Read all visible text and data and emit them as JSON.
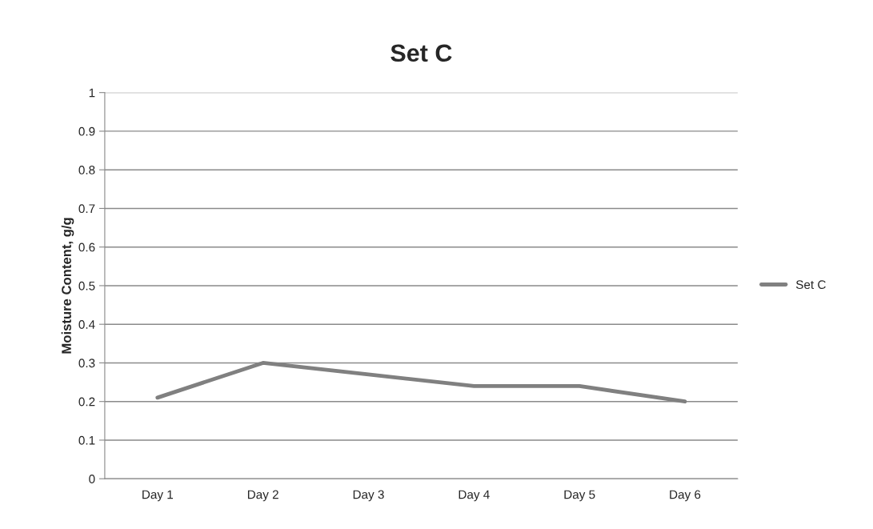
{
  "chart_data": {
    "type": "line",
    "title": "Set C",
    "ylabel": "Moisture Content, g/g",
    "categories": [
      "Day 1",
      "Day 2",
      "Day 3",
      "Day 4",
      "Day 5",
      "Day 6"
    ],
    "series": [
      {
        "name": "Set C",
        "color": "#808080",
        "values": [
          0.21,
          0.3,
          0.27,
          0.24,
          0.24,
          0.2
        ]
      }
    ],
    "ylim": [
      0,
      1
    ],
    "yticks": [
      0,
      0.1,
      0.2,
      0.3,
      0.4,
      0.5,
      0.6,
      0.7,
      0.8,
      0.9,
      1
    ],
    "grid": "y",
    "legend": "right",
    "marker": "none",
    "line_style": "solid"
  }
}
